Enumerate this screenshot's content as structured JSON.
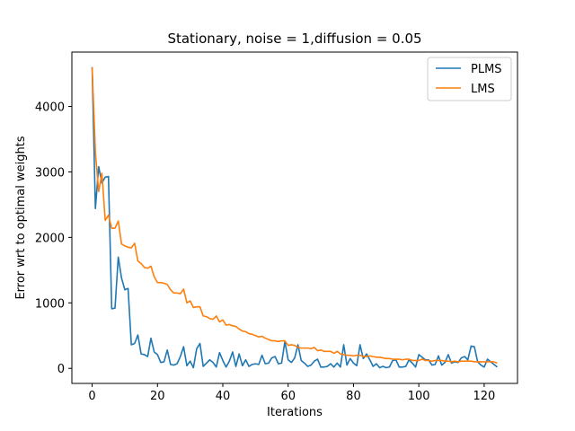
{
  "chart_data": {
    "type": "line",
    "title": "Stationary, noise = 1,diffusion = 0.05",
    "xlabel": "Iterations",
    "ylabel": "Error wrt to optimal weights",
    "xlim": [
      -6.2,
      130.2
    ],
    "ylim": [
      -230,
      4830
    ],
    "xticks": [
      0,
      20,
      40,
      60,
      80,
      100,
      120
    ],
    "yticks": [
      0,
      1000,
      2000,
      3000,
      4000
    ],
    "grid": false,
    "legend_position": "top-right",
    "series": [
      {
        "name": "PLMS",
        "color": "#1f77b4",
        "x": [
          0,
          1,
          2,
          3,
          4,
          5,
          6,
          7,
          8,
          9,
          10,
          11,
          12,
          13,
          14,
          15,
          16,
          17,
          18,
          19,
          20,
          21,
          22,
          23,
          24,
          25,
          26,
          27,
          28,
          29,
          30,
          31,
          32,
          33,
          34,
          35,
          36,
          37,
          38,
          39,
          40,
          41,
          42,
          43,
          44,
          45,
          46,
          47,
          48,
          49,
          50,
          51,
          52,
          53,
          54,
          55,
          56,
          57,
          58,
          59,
          60,
          61,
          62,
          63,
          64,
          65,
          66,
          67,
          68,
          69,
          70,
          71,
          72,
          73,
          74,
          75,
          76,
          77,
          78,
          79,
          80,
          81,
          82,
          83,
          84,
          85,
          86,
          87,
          88,
          89,
          90,
          91,
          92,
          93,
          94,
          95,
          96,
          97,
          98,
          99,
          100,
          101,
          102,
          103,
          104,
          105,
          106,
          107,
          108,
          109,
          110,
          111,
          112,
          113,
          114,
          115,
          116,
          117,
          118,
          119,
          120,
          121,
          122,
          123,
          124
        ],
        "y": [
          4600,
          2440,
          3080,
          2830,
          2920,
          2930,
          910,
          920,
          1700,
          1380,
          1200,
          1220,
          360,
          380,
          510,
          220,
          210,
          180,
          460,
          250,
          210,
          90,
          100,
          280,
          60,
          50,
          70,
          180,
          330,
          40,
          110,
          10,
          300,
          380,
          30,
          80,
          130,
          90,
          20,
          240,
          120,
          20,
          110,
          250,
          30,
          220,
          40,
          130,
          30,
          60,
          70,
          60,
          200,
          70,
          80,
          160,
          180,
          70,
          80,
          410,
          130,
          90,
          160,
          360,
          120,
          80,
          30,
          50,
          110,
          140,
          20,
          20,
          30,
          70,
          20,
          80,
          20,
          360,
          50,
          150,
          80,
          40,
          360,
          150,
          220,
          130,
          30,
          70,
          10,
          30,
          10,
          20,
          120,
          130,
          20,
          20,
          30,
          130,
          80,
          20,
          210,
          170,
          130,
          130,
          50,
          60,
          190,
          50,
          90,
          210,
          80,
          100,
          90,
          160,
          180,
          130,
          340,
          330,
          100,
          50,
          20,
          140,
          100,
          60,
          20
        ]
      },
      {
        "name": "LMS",
        "color": "#ff7f0e",
        "x": [
          0,
          1,
          2,
          3,
          4,
          5,
          6,
          7,
          8,
          9,
          10,
          11,
          12,
          13,
          14,
          15,
          16,
          17,
          18,
          19,
          20,
          21,
          22,
          23,
          24,
          25,
          26,
          27,
          28,
          29,
          30,
          31,
          32,
          33,
          34,
          35,
          36,
          37,
          38,
          39,
          40,
          41,
          42,
          43,
          44,
          45,
          46,
          47,
          48,
          49,
          50,
          51,
          52,
          53,
          54,
          55,
          56,
          57,
          58,
          59,
          60,
          61,
          62,
          63,
          64,
          65,
          66,
          67,
          68,
          69,
          70,
          71,
          72,
          73,
          74,
          75,
          76,
          77,
          78,
          79,
          80,
          81,
          82,
          83,
          84,
          85,
          86,
          87,
          88,
          89,
          90,
          91,
          92,
          93,
          94,
          95,
          96,
          97,
          98,
          99,
          100,
          101,
          102,
          103,
          104,
          105,
          106,
          107,
          108,
          109,
          110,
          111,
          112,
          113,
          114,
          115,
          116,
          117,
          118,
          119,
          120,
          121,
          122,
          123,
          124
        ],
        "y": [
          4600,
          3300,
          2700,
          2980,
          2260,
          2340,
          2140,
          2140,
          2250,
          1900,
          1870,
          1850,
          1840,
          1910,
          1640,
          1600,
          1540,
          1530,
          1560,
          1400,
          1310,
          1310,
          1300,
          1280,
          1200,
          1150,
          1150,
          1140,
          1210,
          1000,
          1030,
          930,
          940,
          940,
          800,
          790,
          760,
          750,
          800,
          710,
          740,
          660,
          670,
          650,
          640,
          600,
          570,
          560,
          530,
          520,
          500,
          480,
          490,
          460,
          440,
          420,
          420,
          410,
          420,
          420,
          350,
          360,
          350,
          320,
          310,
          310,
          310,
          300,
          320,
          270,
          280,
          260,
          260,
          260,
          230,
          260,
          220,
          210,
          200,
          200,
          190,
          200,
          200,
          180,
          180,
          190,
          180,
          170,
          170,
          160,
          150,
          150,
          140,
          140,
          140,
          130,
          140,
          140,
          120,
          120,
          120,
          140,
          120,
          120,
          110,
          120,
          120,
          120,
          110,
          110,
          100,
          110,
          100,
          110,
          110,
          110,
          110,
          100,
          100,
          100,
          100,
          100,
          100,
          100,
          80
        ]
      }
    ]
  }
}
